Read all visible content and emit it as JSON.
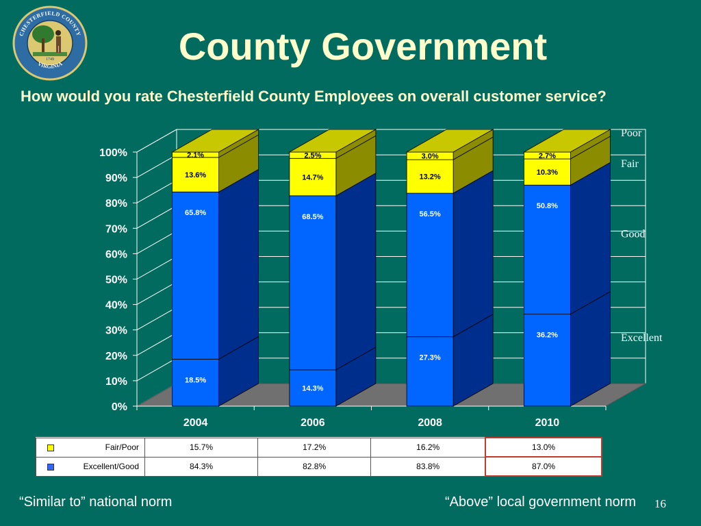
{
  "slide": {
    "title": "County Government",
    "question": "How would you rate Chesterfield County Employees on overall customer service?",
    "seal": {
      "top_text": "CHESTERFIELD COUNTY",
      "bottom_text": "VIRGINIA",
      "year": "1749"
    },
    "note_left": "“Similar to” national norm",
    "note_right": "“Above” local government norm",
    "page_number": "16"
  },
  "chart_data": {
    "type": "bar",
    "stacked": true,
    "style": "3d",
    "categories": [
      "2004",
      "2006",
      "2008",
      "2010"
    ],
    "series": [
      {
        "name": "Excellent",
        "values": [
          18.5,
          14.3,
          27.3,
          36.2
        ],
        "labels": [
          "18.5%",
          "14.3%",
          "27.3%",
          "36.2%"
        ],
        "color": "#0066FF"
      },
      {
        "name": "Good",
        "values": [
          65.8,
          68.5,
          56.5,
          50.8
        ],
        "labels": [
          "65.8%",
          "68.5%",
          "56.5%",
          "50.8%"
        ],
        "color": "#0066FF"
      },
      {
        "name": "Fair",
        "values": [
          13.6,
          14.7,
          13.2,
          10.3
        ],
        "labels": [
          "13.6%",
          "14.7%",
          "13.2%",
          "10.3%"
        ],
        "color": "#FFFF00"
      },
      {
        "name": "Poor",
        "values": [
          2.1,
          2.5,
          3.0,
          2.7
        ],
        "labels": [
          "2.1%",
          "2.5%",
          "3.0%",
          "2.7%"
        ],
        "color": "#FFFF00"
      }
    ],
    "ylim": [
      0,
      100
    ],
    "y_ticks": [
      "0%",
      "10%",
      "20%",
      "30%",
      "40%",
      "50%",
      "60%",
      "70%",
      "80%",
      "90%",
      "100%"
    ],
    "grid": true,
    "legend": "right",
    "colors": {
      "blue_side": "#002E8C",
      "yellow_side": "#8C8C00",
      "yellow_top": "#C8C800",
      "floor": "#707070",
      "wall": "#006B5E",
      "grid": "#FFFFFF"
    }
  },
  "table": {
    "rows": [
      {
        "label": "Fair/Poor",
        "swatch": "#FFFF00",
        "values": [
          "15.7%",
          "17.2%",
          "16.2%",
          "13.0%"
        ]
      },
      {
        "label": "Excellent/Good",
        "swatch": "#3366FF",
        "values": [
          "84.3%",
          "82.8%",
          "83.8%",
          "87.0%"
        ]
      }
    ]
  }
}
